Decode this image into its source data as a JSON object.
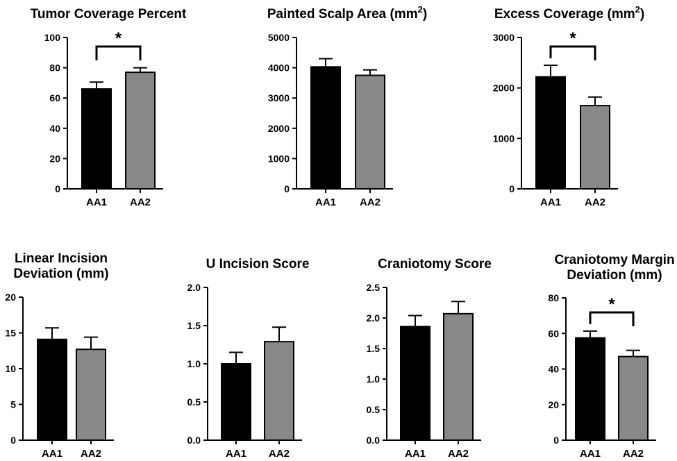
{
  "chart_data": [
    {
      "type": "bar",
      "title": [
        "Tumor Coverage Percent"
      ],
      "title_sup": "",
      "categories": [
        "AA1",
        "AA2"
      ],
      "values": [
        66,
        77
      ],
      "errors": [
        4.5,
        3
      ],
      "colors": [
        "#000000",
        "#888888"
      ],
      "ylim": [
        0,
        100
      ],
      "yticks": [
        0,
        20,
        40,
        60,
        80,
        100
      ],
      "ytick_labels": [
        "0",
        "20",
        "40",
        "60",
        "80",
        "100"
      ],
      "significance": "*"
    },
    {
      "type": "bar",
      "title": [
        "Painted Scalp Area (mm"
      ],
      "title_sup": "2",
      "title_tail": ")",
      "categories": [
        "AA1",
        "AA2"
      ],
      "values": [
        4030,
        3750
      ],
      "errors": [
        270,
        180
      ],
      "colors": [
        "#000000",
        "#888888"
      ],
      "ylim": [
        0,
        5000
      ],
      "yticks": [
        0,
        1000,
        2000,
        3000,
        4000,
        5000
      ],
      "ytick_labels": [
        "0",
        "1000",
        "2000",
        "3000",
        "4000",
        "5000"
      ],
      "significance": ""
    },
    {
      "type": "bar",
      "title": [
        "Excess Coverage (mm"
      ],
      "title_sup": "2",
      "title_tail": ")",
      "categories": [
        "AA1",
        "AA2"
      ],
      "values": [
        2220,
        1650
      ],
      "errors": [
        230,
        170
      ],
      "colors": [
        "#000000",
        "#888888"
      ],
      "ylim": [
        0,
        3000
      ],
      "yticks": [
        0,
        1000,
        2000,
        3000
      ],
      "ytick_labels": [
        "0",
        "1000",
        "2000",
        "3000"
      ],
      "significance": "*"
    },
    {
      "type": "bar",
      "title": [
        "Linear Incision",
        "Deviation (mm)"
      ],
      "title_sup": "",
      "categories": [
        "AA1",
        "AA2"
      ],
      "values": [
        14.1,
        12.7
      ],
      "errors": [
        1.6,
        1.7
      ],
      "colors": [
        "#000000",
        "#888888"
      ],
      "ylim": [
        0,
        20
      ],
      "yticks": [
        0,
        5,
        10,
        15,
        20
      ],
      "ytick_labels": [
        "0",
        "5",
        "10",
        "15",
        "20"
      ],
      "significance": ""
    },
    {
      "type": "bar",
      "title": [
        "U Incision Score"
      ],
      "title_sup": "",
      "categories": [
        "AA1",
        "AA2"
      ],
      "values": [
        1.0,
        1.29
      ],
      "errors": [
        0.15,
        0.19
      ],
      "colors": [
        "#000000",
        "#888888"
      ],
      "ylim": [
        0,
        2.0
      ],
      "yticks": [
        0,
        0.5,
        1.0,
        1.5,
        2.0
      ],
      "ytick_labels": [
        "0.0",
        "0.5",
        "1.0",
        "1.5",
        "2.0"
      ],
      "significance": ""
    },
    {
      "type": "bar",
      "title": [
        "Craniotomy Score"
      ],
      "title_sup": "",
      "categories": [
        "AA1",
        "AA2"
      ],
      "values": [
        1.86,
        2.07
      ],
      "errors": [
        0.18,
        0.2
      ],
      "colors": [
        "#000000",
        "#888888"
      ],
      "ylim": [
        0,
        2.5
      ],
      "yticks": [
        0,
        0.5,
        1.0,
        1.5,
        2.0,
        2.5
      ],
      "ytick_labels": [
        "0.0",
        "0.5",
        "1.0",
        "1.5",
        "2.0",
        "2.5"
      ],
      "significance": ""
    },
    {
      "type": "bar",
      "title": [
        "Craniotomy Margin",
        "Deviation (mm)"
      ],
      "title_sup": "",
      "categories": [
        "AA1",
        "AA2"
      ],
      "values": [
        57.5,
        47
      ],
      "errors": [
        3.8,
        3.5
      ],
      "colors": [
        "#000000",
        "#888888"
      ],
      "ylim": [
        0,
        80
      ],
      "yticks": [
        0,
        20,
        40,
        60,
        80
      ],
      "ytick_labels": [
        "0",
        "20",
        "40",
        "60",
        "80"
      ],
      "significance": "*"
    }
  ]
}
